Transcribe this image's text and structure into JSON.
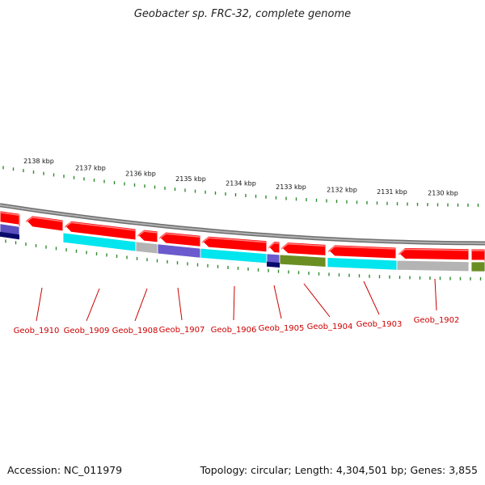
{
  "title": "Geobacter sp. FRC-32, complete genome",
  "footer": {
    "accession": "Accession: NC_011979",
    "summary": "Topology: circular; Length: 4,304,501 bp; Genes: 3,855"
  },
  "colors": {
    "backbone": "#8a8a8a",
    "forward_gene": "#ff0000",
    "tick": "#2e8b2e",
    "label": "#cc0000"
  },
  "scale_labels": [
    {
      "text": "2138 kbp",
      "kbp": 2138
    },
    {
      "text": "2137 kbp",
      "kbp": 2137
    },
    {
      "text": "2136 kbp",
      "kbp": 2136
    },
    {
      "text": "2135 kbp",
      "kbp": 2135
    },
    {
      "text": "2134 kbp",
      "kbp": 2134
    },
    {
      "text": "2133 kbp",
      "kbp": 2133
    },
    {
      "text": "2132 kbp",
      "kbp": 2132
    },
    {
      "text": "2131 kbp",
      "kbp": 2131
    },
    {
      "text": "2130 kbp",
      "kbp": 2130
    }
  ],
  "gene_labels": [
    {
      "text": "Geob_1910"
    },
    {
      "text": "Geob_1909"
    },
    {
      "text": "Geob_1908"
    },
    {
      "text": "Geob_1907"
    },
    {
      "text": "Geob_1906"
    },
    {
      "text": "Geob_1905"
    },
    {
      "text": "Geob_1904"
    },
    {
      "text": "Geob_1903"
    },
    {
      "text": "Geob_1902"
    }
  ],
  "category_blocks": [
    {
      "color": "#5a50c0"
    },
    {
      "color": "#00e5ee"
    },
    {
      "color": "#b4b4b4"
    },
    {
      "color": "#6a5acd"
    },
    {
      "color": "#00e5ee"
    },
    {
      "color": "#6a5acd"
    },
    {
      "color": "#6b8e23"
    },
    {
      "color": "#00e5ee"
    },
    {
      "color": "#b4b4b4"
    },
    {
      "color": "#6b8e23"
    }
  ]
}
